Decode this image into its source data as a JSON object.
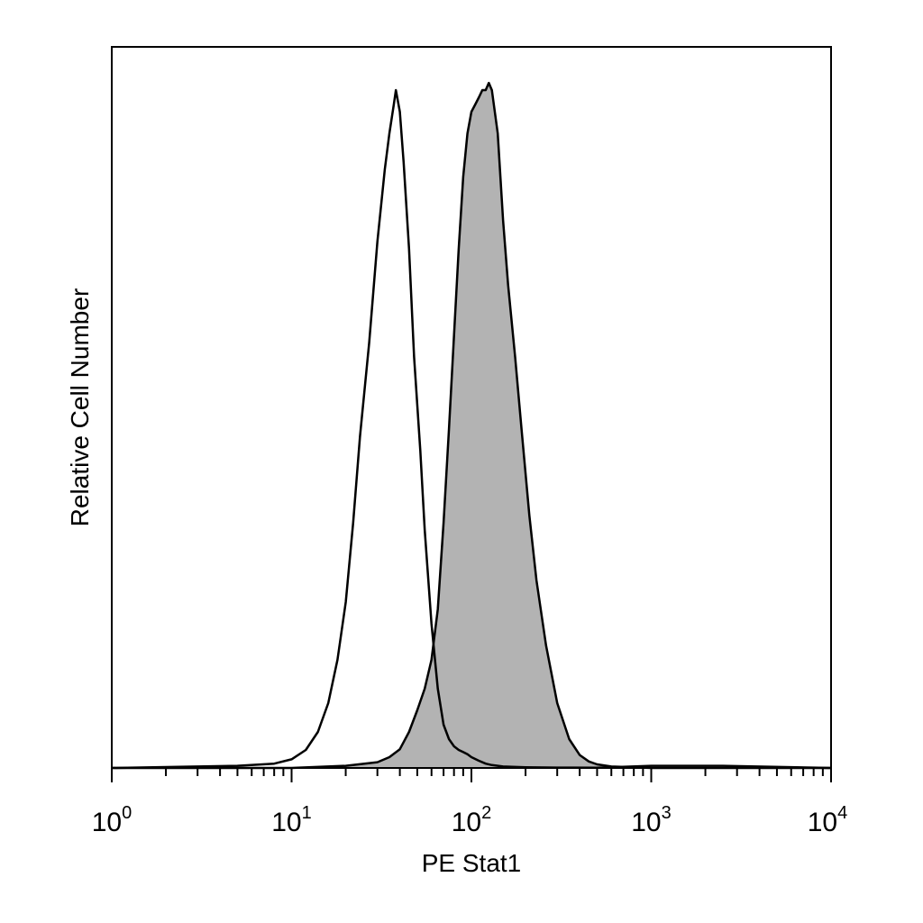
{
  "chart_data": {
    "type": "area",
    "xlabel": "PE Stat1",
    "ylabel": "Relative Cell Number",
    "xscale": "log",
    "xlim": [
      1,
      10000
    ],
    "ylim": [
      0,
      100
    ],
    "grid": false,
    "x_ticks": [
      {
        "base": "10",
        "exp": "0",
        "value": 1
      },
      {
        "base": "10",
        "exp": "1",
        "value": 10
      },
      {
        "base": "10",
        "exp": "2",
        "value": 100
      },
      {
        "base": "10",
        "exp": "3",
        "value": 1000
      },
      {
        "base": "10",
        "exp": "4",
        "value": 10000
      }
    ],
    "series": [
      {
        "style": "outline",
        "fill": "none",
        "stroke": "#000000",
        "x": [
          1,
          5,
          8,
          10,
          12,
          14,
          16,
          18,
          20,
          22,
          24,
          27,
          30,
          33,
          35,
          37,
          38,
          40,
          42,
          45,
          48,
          52,
          55,
          60,
          65,
          70,
          75,
          80,
          85,
          90,
          95,
          100,
          110,
          120,
          130,
          150,
          200,
          300,
          500,
          1000,
          2500,
          10000
        ],
        "y": [
          0,
          0.3,
          0.6,
          1.2,
          2.5,
          5,
          9,
          15,
          23,
          34,
          46,
          59,
          73,
          83,
          88,
          92,
          94,
          91,
          84,
          72,
          57,
          44,
          33,
          20,
          11,
          6,
          4,
          3,
          2.5,
          2.2,
          1.9,
          1.5,
          1,
          0.6,
          0.4,
          0.2,
          0.1,
          0.05,
          0.03,
          0.3,
          0.3,
          0
        ]
      },
      {
        "style": "filled",
        "fill": "#b3b3b3",
        "stroke": "#000000",
        "x": [
          1,
          10,
          20,
          30,
          35,
          40,
          45,
          50,
          55,
          60,
          65,
          70,
          75,
          80,
          85,
          90,
          95,
          100,
          105,
          110,
          115,
          120,
          125,
          130,
          140,
          150,
          160,
          175,
          190,
          210,
          230,
          260,
          300,
          350,
          400,
          450,
          500,
          600,
          800,
          1000,
          10000
        ],
        "y": [
          0,
          0,
          0.3,
          0.8,
          1.5,
          2.6,
          5,
          8,
          11,
          15,
          22,
          34,
          47,
          60,
          72,
          82,
          88,
          91,
          92,
          93,
          94,
          94,
          95,
          94,
          88,
          76,
          67,
          57,
          47,
          35,
          26,
          17,
          9,
          4,
          1.8,
          0.9,
          0.5,
          0.2,
          0.1,
          0,
          0
        ]
      }
    ]
  }
}
